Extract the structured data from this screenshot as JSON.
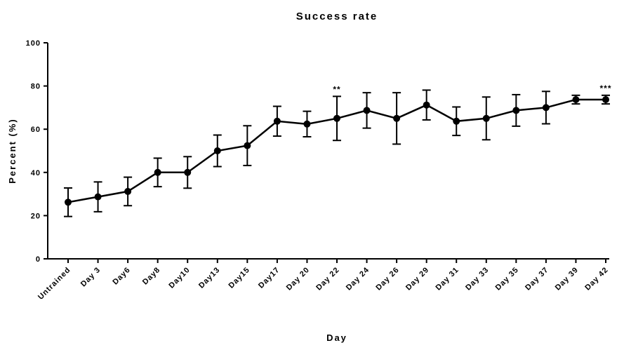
{
  "chart_data": {
    "type": "line",
    "title": "Success rate",
    "xlabel": "Day",
    "ylabel": "Percent (%)",
    "ylim": [
      0,
      100
    ],
    "yticks": [
      0,
      20,
      40,
      60,
      80,
      100
    ],
    "grid": false,
    "categories": [
      "Untrained",
      "Day 3",
      "Day6",
      "Day8",
      "Day10",
      "Day13",
      "Day15",
      "Day17",
      "Day 20",
      "Day 22",
      "Day 24",
      "Day 26",
      "Day 29",
      "Day 31",
      "Day 33",
      "Day 35",
      "Day 37",
      "Day 39",
      "Day 42"
    ],
    "series": [
      {
        "values": [
          26.2,
          28.7,
          31.2,
          40.0,
          40.0,
          50.0,
          52.4,
          63.7,
          62.4,
          65.0,
          68.7,
          65.0,
          71.2,
          63.7,
          65.0,
          68.7,
          70.0,
          73.7,
          73.7
        ],
        "error": [
          6.6,
          6.9,
          6.6,
          6.6,
          7.3,
          7.3,
          9.2,
          6.9,
          5.9,
          10.2,
          8.2,
          11.9,
          6.9,
          6.6,
          9.9,
          7.3,
          7.5,
          2.0,
          2.0
        ],
        "color": "#000000"
      }
    ],
    "annotations": [
      {
        "category_index": 9,
        "text": "**"
      },
      {
        "category_index": 18,
        "text": "***"
      }
    ]
  }
}
